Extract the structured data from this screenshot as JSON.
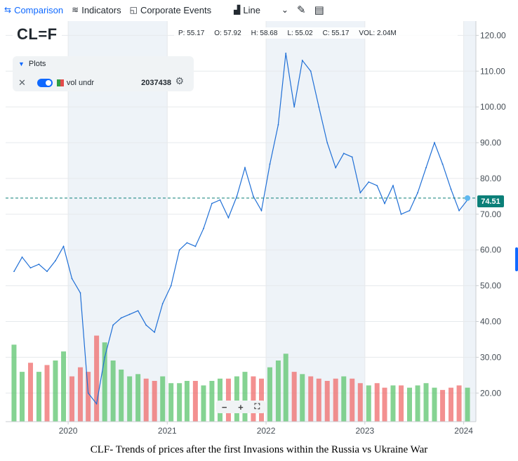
{
  "toolbar": {
    "comparison": "Comparison",
    "indicators": "Indicators",
    "corporate_events": "Corporate Events",
    "chart_type": "Line",
    "icons": [
      "comparison-icon",
      "indicators-icon",
      "corporate-events-icon",
      "line-chart-icon",
      "chevron-down-icon",
      "draw-icon",
      "table-icon"
    ]
  },
  "ticker": "CL=F",
  "ohlc": {
    "p": "P: 55.17",
    "o": "O: 57.92",
    "h": "H: 58.68",
    "l": "L: 55.02",
    "c": "C: 55.17",
    "vol": "VOL: 2.04M"
  },
  "plots": {
    "header": "Plots",
    "item_name": "vol undr",
    "item_value": "2037438"
  },
  "zoom": {
    "minus": "−",
    "plus": "+",
    "fit": "⛶"
  },
  "last_price_label": "74.51",
  "caption": "CLF- Trends of prices after the first Invasions within the Russia vs Ukraine War",
  "colors": {
    "line": "#1f6fd6",
    "last_price": "#0b7f78",
    "volume_up": "#5cc46e",
    "volume_down": "#ef6b6b",
    "band": "#eef3f8",
    "accent": "#0f69ff"
  },
  "chart_data": {
    "type": "line",
    "title": "",
    "xlabel": "",
    "ylabel": "",
    "ylim": [
      12,
      124
    ],
    "y_ticks": [
      "20.00",
      "30.00",
      "40.00",
      "50.00",
      "60.00",
      "70.00",
      "80.00",
      "90.00",
      "100.00",
      "110.00",
      "120.00"
    ],
    "x_ticks": [
      "2020",
      "2021",
      "2022",
      "2023",
      "2024"
    ],
    "grid": true,
    "legend": "none",
    "last_price": 74.51,
    "series": [
      {
        "x": [
          "2019-06",
          "2019-07",
          "2019-08",
          "2019-09",
          "2019-10",
          "2019-11",
          "2019-12",
          "2020-01",
          "2020-02",
          "2020-03",
          "2020-04",
          "2020-05",
          "2020-06",
          "2020-07",
          "2020-08",
          "2020-09",
          "2020-10",
          "2020-11",
          "2020-12",
          "2021-01",
          "2021-02",
          "2021-03",
          "2021-04",
          "2021-05",
          "2021-06",
          "2021-07",
          "2021-08",
          "2021-09",
          "2021-10",
          "2021-11",
          "2021-12",
          "2022-01",
          "2022-02",
          "2022-03",
          "2022-04",
          "2022-05",
          "2022-06",
          "2022-07",
          "2022-08",
          "2022-09",
          "2022-10",
          "2022-11",
          "2022-12",
          "2023-01",
          "2023-02",
          "2023-03",
          "2023-04",
          "2023-05",
          "2023-06",
          "2023-07",
          "2023-08",
          "2023-09",
          "2023-10",
          "2023-11",
          "2023-12",
          "2024-01"
        ],
        "values": [
          54,
          58,
          55,
          56,
          54,
          57,
          61,
          52,
          48,
          20,
          17,
          30,
          39,
          41,
          42,
          43,
          39,
          37,
          45,
          50,
          60,
          62,
          61,
          66,
          73,
          74,
          69,
          75,
          83,
          75,
          71,
          84,
          95,
          115,
          100,
          113,
          110,
          100,
          90,
          83,
          87,
          86,
          76,
          79,
          78,
          73,
          78,
          70,
          71,
          76,
          83,
          90,
          84,
          77,
          71,
          74
        ]
      }
    ],
    "volume": {
      "ylim": [
        0,
        45
      ],
      "values": [
        34,
        22,
        26,
        22,
        25,
        27,
        31,
        20,
        24,
        22,
        38,
        35,
        27,
        23,
        20,
        21,
        19,
        18,
        20,
        17,
        17,
        18,
        18,
        16,
        18,
        19,
        19,
        20,
        22,
        20,
        19,
        24,
        27,
        30,
        22,
        21,
        20,
        19,
        18,
        19,
        20,
        19,
        17,
        16,
        17,
        15,
        16,
        16,
        15,
        16,
        17,
        15,
        14,
        15,
        16,
        15
      ]
    }
  }
}
